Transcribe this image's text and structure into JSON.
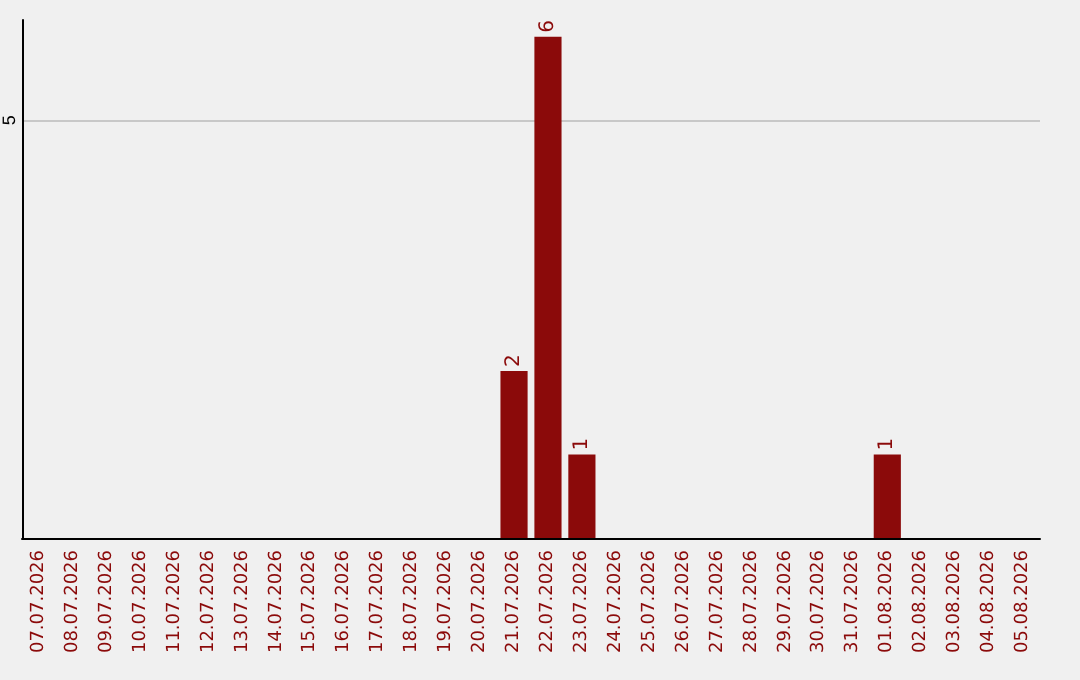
{
  "chart_data": {
    "type": "bar",
    "categories": [
      "07.07.2026",
      "08.07.2026",
      "09.07.2026",
      "10.07.2026",
      "11.07.2026",
      "12.07.2026",
      "13.07.2026",
      "14.07.2026",
      "15.07.2026",
      "16.07.2026",
      "17.07.2026",
      "18.07.2026",
      "19.07.2026",
      "20.07.2026",
      "21.07.2026",
      "22.07.2026",
      "23.07.2026",
      "24.07.2026",
      "25.07.2026",
      "26.07.2026",
      "27.07.2026",
      "28.07.2026",
      "29.07.2026",
      "30.07.2026",
      "31.07.2026",
      "01.08.2026",
      "02.08.2026",
      "03.08.2026",
      "04.08.2026",
      "05.08.2026"
    ],
    "values": [
      null,
      null,
      null,
      null,
      null,
      null,
      null,
      null,
      null,
      null,
      null,
      null,
      null,
      null,
      2,
      6,
      1,
      null,
      null,
      null,
      null,
      null,
      null,
      null,
      null,
      1,
      null,
      null,
      null,
      null
    ],
    "data_labels": true,
    "color": "#8b0a0a",
    "ylim": [
      0,
      6.2
    ],
    "yticks": [
      5
    ],
    "grid": "y"
  }
}
